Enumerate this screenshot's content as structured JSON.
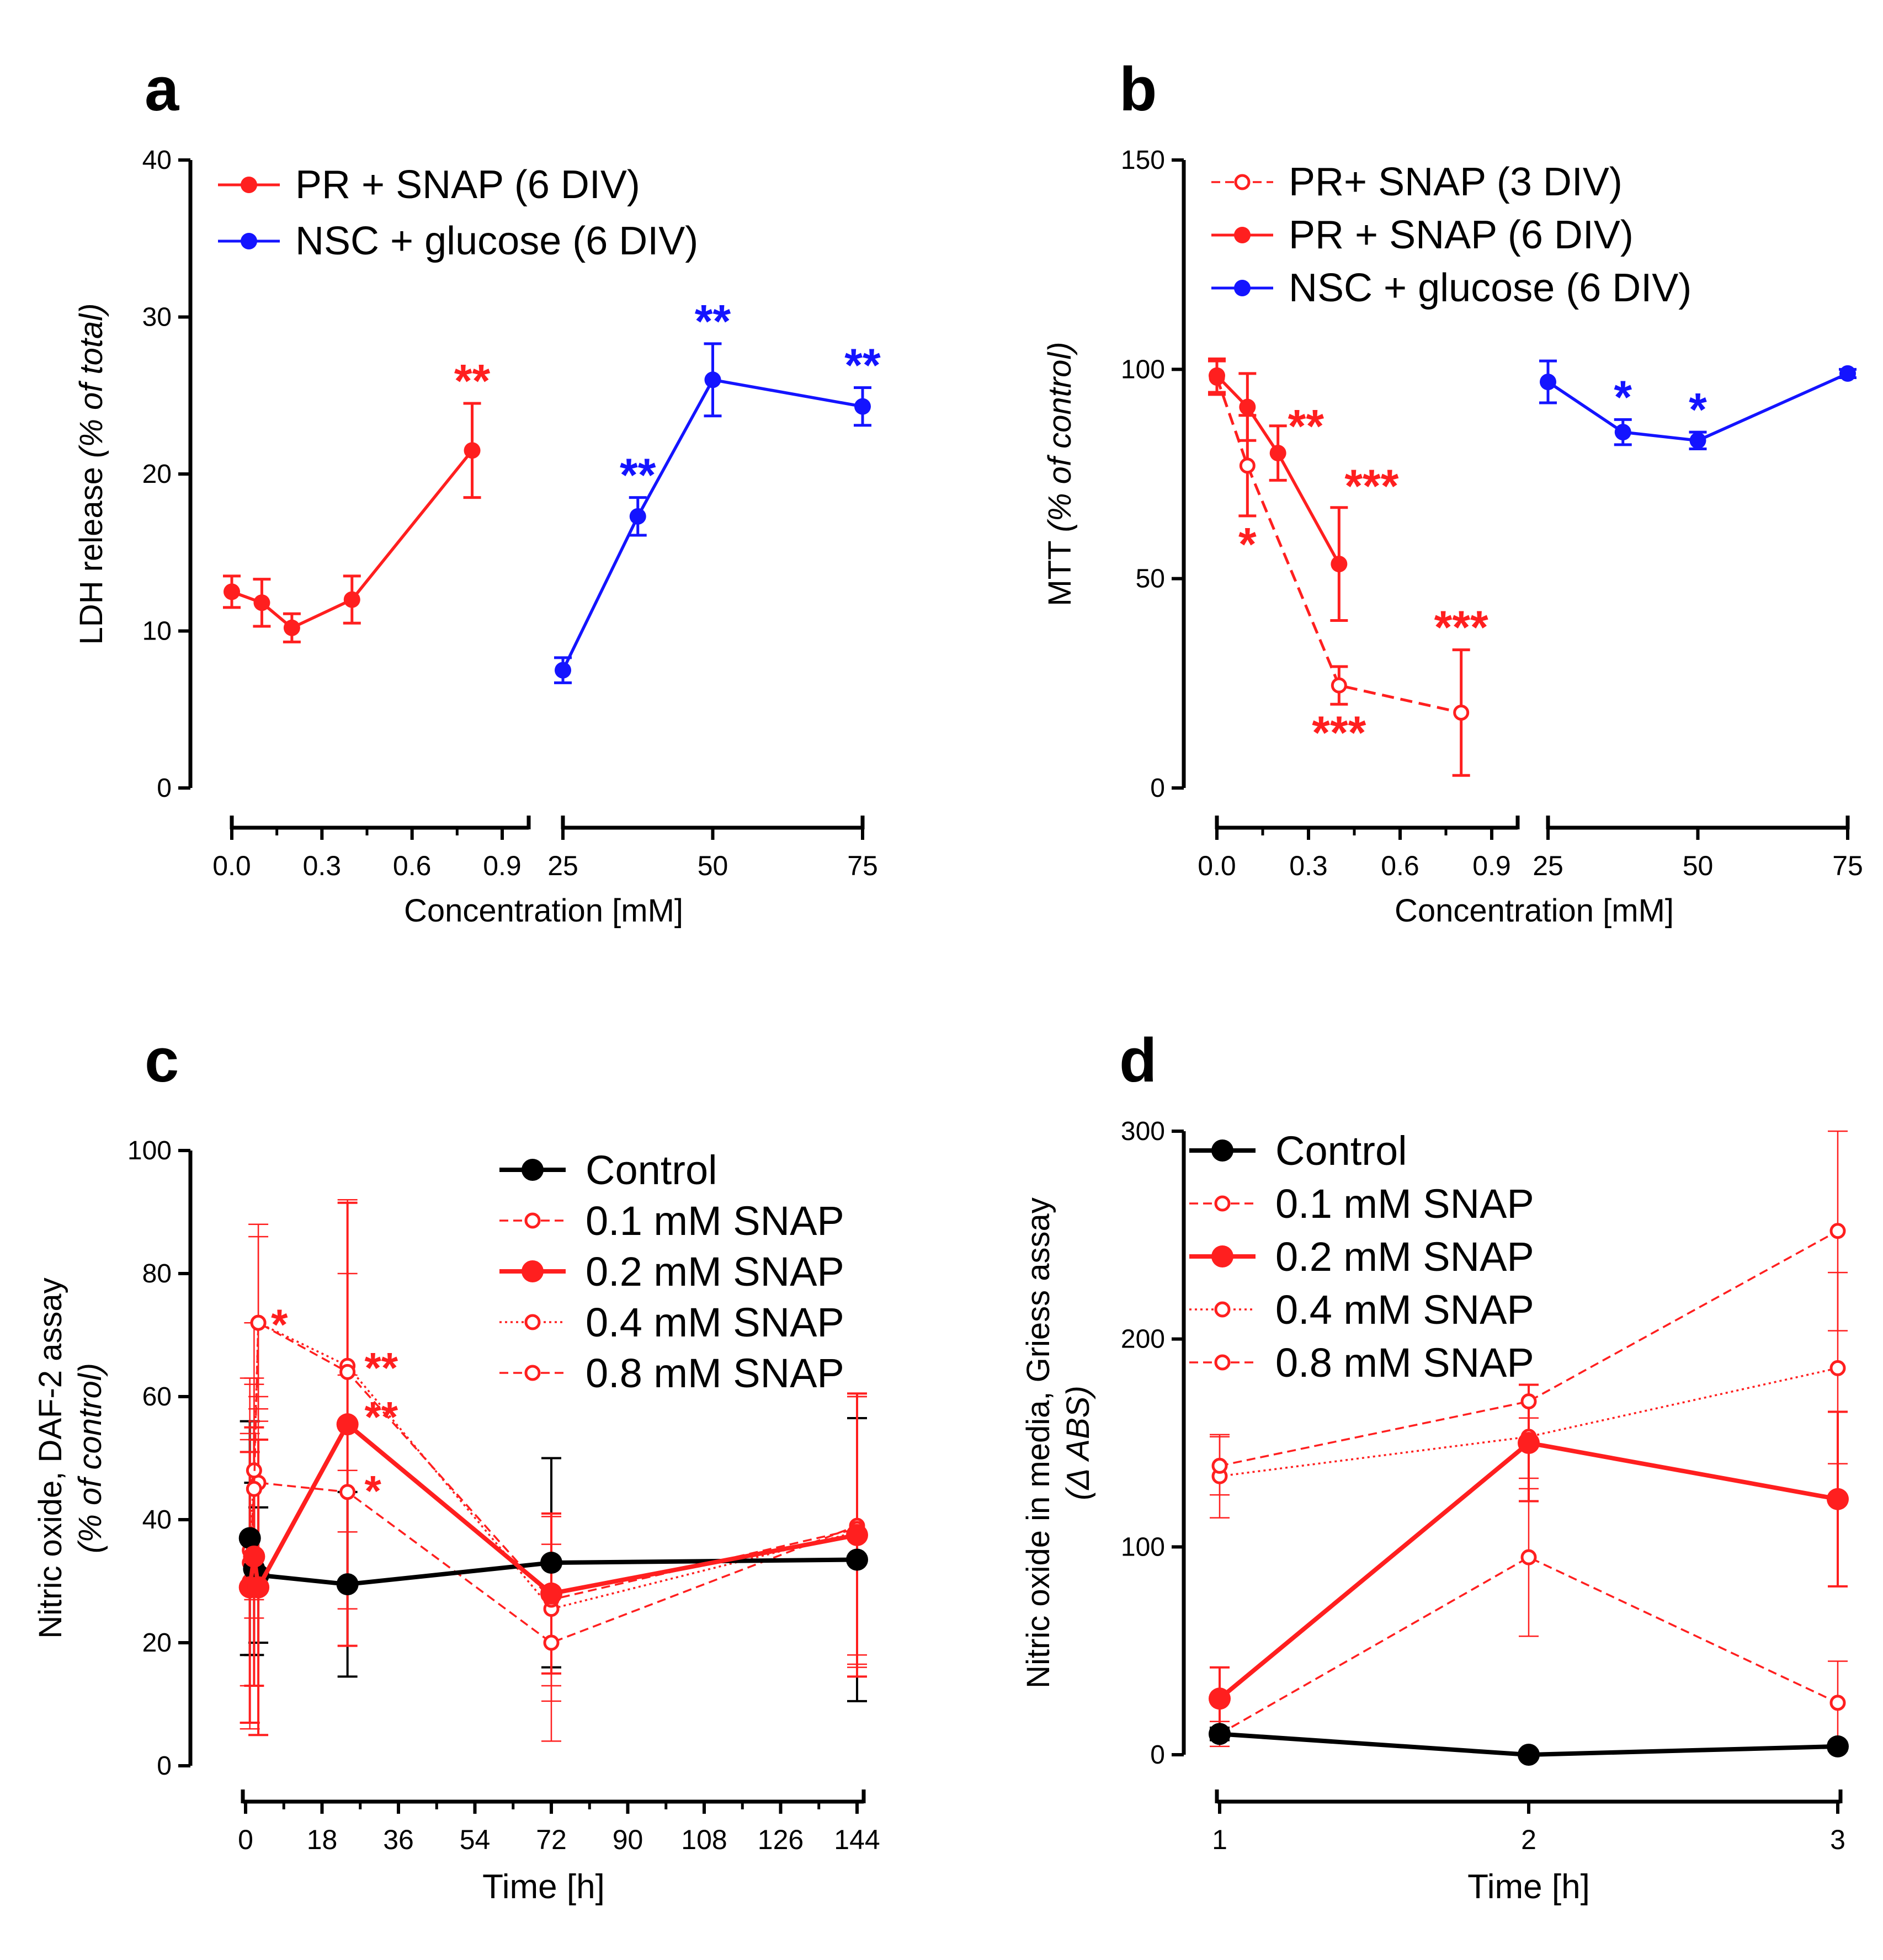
{
  "colors": {
    "red": "#ff1f1f",
    "blue": "#1414ff",
    "black": "#000000"
  },
  "chart_data": [
    {
      "panel": "a",
      "type": "line",
      "ylabel_plain": "LDH release",
      "ylabel_italic": "(% of total)",
      "xlabel": "Concentration [mM]",
      "ylim": [
        0,
        40
      ],
      "yticks": [
        "0",
        "10",
        "20",
        "30",
        "40"
      ],
      "segments": [
        {
          "xlim": [
            0,
            0.9
          ],
          "ticks": [
            "0.0",
            "0.3",
            "0.6",
            "0.9"
          ]
        },
        {
          "xlim": [
            25,
            75
          ],
          "ticks": [
            "25",
            "50",
            "75"
          ]
        }
      ],
      "legend": [
        {
          "label": "PR + SNAP (6 DIV)",
          "color": "red",
          "style": "solid",
          "marker": "filled"
        },
        {
          "label": "NSC + glucose (6 DIV)",
          "color": "blue",
          "style": "solid",
          "marker": "filled"
        }
      ],
      "series": [
        {
          "name": "PR + SNAP (6 DIV)",
          "color": "red",
          "segment": 0,
          "style": "solid",
          "marker": "filled",
          "x": [
            0,
            0.1,
            0.2,
            0.4,
            0.8
          ],
          "y": [
            12.5,
            11.8,
            10.2,
            12.0,
            21.5
          ],
          "err": [
            1.0,
            1.5,
            0.9,
            1.5,
            3.0
          ],
          "stars": [
            "",
            "",
            "",
            "",
            "**"
          ]
        },
        {
          "name": "NSC + glucose (6 DIV)",
          "color": "blue",
          "segment": 1,
          "style": "solid",
          "marker": "filled",
          "x": [
            25,
            37.5,
            50,
            75
          ],
          "y": [
            7.5,
            17.3,
            26.0,
            24.3
          ],
          "err": [
            0.8,
            1.2,
            2.3,
            1.2
          ],
          "stars": [
            "",
            "**",
            "**",
            "**"
          ]
        }
      ]
    },
    {
      "panel": "b",
      "type": "line",
      "ylabel_plain": "MTT",
      "ylabel_italic": "(% of control)",
      "xlabel": "Concentration [mM]",
      "ylim": [
        0,
        150
      ],
      "yticks": [
        "0",
        "50",
        "100",
        "150"
      ],
      "segments": [
        {
          "xlim": [
            0,
            0.9
          ],
          "ticks": [
            "0.0",
            "0.3",
            "0.6",
            "0.9"
          ]
        },
        {
          "xlim": [
            25,
            75
          ],
          "ticks": [
            "25",
            "50",
            "75"
          ]
        }
      ],
      "legend": [
        {
          "label": "PR+ SNAP (3 DIV)",
          "color": "red",
          "style": "dashed",
          "marker": "open"
        },
        {
          "label": "PR + SNAP (6 DIV)",
          "color": "red",
          "style": "solid",
          "marker": "filled"
        },
        {
          "label": "NSC + glucose (6 DIV)",
          "color": "blue",
          "style": "solid",
          "marker": "filled"
        }
      ],
      "series": [
        {
          "name": "PR+ SNAP (3 DIV)",
          "color": "red",
          "segment": 0,
          "style": "dashed",
          "marker": "open",
          "x": [
            0,
            0.1,
            0.4,
            0.8
          ],
          "y": [
            98,
            77,
            24.5,
            18
          ],
          "err": [
            4,
            12,
            4.5,
            15
          ],
          "stars": [
            "",
            "*",
            "***",
            "***"
          ],
          "starpos": [
            "",
            "below",
            "below",
            "above"
          ]
        },
        {
          "name": "PR + SNAP (6 DIV)",
          "color": "red",
          "segment": 0,
          "style": "solid",
          "marker": "filled",
          "x": [
            0,
            0.1,
            0.2,
            0.4
          ],
          "y": [
            98.5,
            91,
            80,
            53.5
          ],
          "err": [
            4,
            8,
            6.5,
            13.5
          ],
          "stars": [
            "",
            "",
            "**",
            "***"
          ],
          "starpos": [
            "",
            "",
            "right",
            "aboveright"
          ]
        },
        {
          "name": "NSC + glucose (6 DIV)",
          "color": "blue",
          "segment": 1,
          "style": "solid",
          "marker": "filled",
          "x": [
            25,
            37.5,
            50,
            75
          ],
          "y": [
            97,
            85,
            83,
            99
          ],
          "err": [
            5,
            3,
            2,
            1
          ],
          "stars": [
            "",
            "*",
            "*",
            ""
          ],
          "starpos": [
            "",
            "above",
            "above",
            ""
          ]
        }
      ]
    },
    {
      "panel": "c",
      "type": "line",
      "ylabel_plain": "Nitric oxide, DAF-2 assay",
      "ylabel_italic": "(% of control)",
      "xlabel": "Time [h]",
      "xlim": [
        0,
        144
      ],
      "xticks": [
        0,
        18,
        36,
        54,
        72,
        90,
        108,
        126,
        144
      ],
      "ylim": [
        0,
        100
      ],
      "yticks": [
        "0",
        "20",
        "40",
        "60",
        "80",
        "100"
      ],
      "legend": [
        {
          "label": "Control",
          "color": "black",
          "style": "solid-thick",
          "marker": "filled-big"
        },
        {
          "label": "0.1 mM SNAP",
          "color": "red",
          "style": "dashed",
          "marker": "open"
        },
        {
          "label": "0.2 mM SNAP",
          "color": "red",
          "style": "solid-thick",
          "marker": "filled-big"
        },
        {
          "label": "0.4 mM SNAP",
          "color": "red",
          "style": "dotted",
          "marker": "open"
        },
        {
          "label": "0.8 mM SNAP",
          "color": "red",
          "style": "dashed",
          "marker": "open"
        }
      ],
      "series": [
        {
          "name": "Control",
          "color": "black",
          "style": "solid-thick",
          "marker": "filled-big",
          "x": [
            1,
            2,
            3,
            24,
            72,
            144
          ],
          "y": [
            37,
            32,
            31,
            29.5,
            33,
            33.5
          ],
          "err": [
            19,
            14,
            11,
            15,
            17,
            23
          ]
        },
        {
          "name": "0.1 mM SNAP",
          "color": "red",
          "style": "dashed",
          "marker": "open",
          "x": [
            1,
            2,
            3,
            24,
            72,
            144
          ],
          "y": [
            33,
            45,
            46,
            44.5,
            20,
            39
          ],
          "err": [
            20,
            17,
            14,
            19,
            16,
            21
          ]
        },
        {
          "name": "0.2 mM SNAP",
          "color": "red",
          "style": "solid-thick",
          "marker": "filled-big",
          "x": [
            1,
            2,
            3,
            24,
            72,
            144
          ],
          "y": [
            29,
            34,
            29,
            55.5,
            28,
            37.5
          ],
          "err": [
            22,
            21,
            24,
            36,
            13,
            23
          ]
        },
        {
          "name": "0.4 mM SNAP",
          "color": "red",
          "style": "dotted",
          "marker": "open",
          "x": [
            1,
            2,
            3,
            24,
            72,
            144
          ],
          "y": [
            35,
            48,
            72,
            65,
            25.5,
            38
          ],
          "err": [
            28,
            24,
            16,
            27,
            15,
            22
          ]
        },
        {
          "name": "0.8 mM SNAP",
          "color": "red",
          "style": "dashed",
          "marker": "open",
          "x": [
            1,
            2,
            3,
            24,
            72,
            144
          ],
          "y": [
            30,
            45,
            72,
            64,
            27,
            38.5
          ],
          "err": [
            24,
            18,
            14,
            16,
            14,
            22
          ]
        }
      ],
      "annotations": [
        {
          "text": "*",
          "x": 6,
          "y": 72
        },
        {
          "text": "**",
          "x": 28,
          "y": 65
        },
        {
          "text": "**",
          "x": 28,
          "y": 57
        },
        {
          "text": "*",
          "x": 28,
          "y": 45
        }
      ]
    },
    {
      "panel": "d",
      "type": "line",
      "ylabel_plain": "Nitric oxide in media, Griess assay",
      "ylabel_italic": "(Δ ABS)",
      "xlabel": "Time [h]",
      "xlim": [
        1,
        3
      ],
      "xticks": [
        1,
        2,
        3
      ],
      "ylim": [
        0,
        300
      ],
      "yticks": [
        "0",
        "100",
        "200",
        "300"
      ],
      "legend": [
        {
          "label": "Control",
          "color": "black",
          "style": "solid-thick",
          "marker": "filled-big"
        },
        {
          "label": "0.1 mM SNAP",
          "color": "red",
          "style": "dashed",
          "marker": "open"
        },
        {
          "label": "0.2 mM SNAP",
          "color": "red",
          "style": "solid-thick",
          "marker": "filled-big"
        },
        {
          "label": "0.4 mM SNAP",
          "color": "red",
          "style": "dotted",
          "marker": "open"
        },
        {
          "label": "0.8 mM SNAP",
          "color": "red",
          "style": "dashed",
          "marker": "open"
        }
      ],
      "series": [
        {
          "name": "Control",
          "color": "black",
          "style": "solid-thick",
          "marker": "filled-big",
          "x": [
            1,
            2,
            3
          ],
          "y": [
            10,
            0,
            4
          ],
          "err": [
            3,
            2,
            2
          ]
        },
        {
          "name": "0.1 mM SNAP",
          "color": "red",
          "style": "dashed",
          "marker": "open",
          "x": [
            1,
            2,
            3
          ],
          "y": [
            10,
            95,
            25
          ],
          "err": [
            6,
            38,
            20
          ]
        },
        {
          "name": "0.2 mM SNAP",
          "color": "red",
          "style": "solid-thick",
          "marker": "filled-big",
          "x": [
            1,
            2,
            3
          ],
          "y": [
            27,
            150,
            123
          ],
          "err": [
            15,
            28,
            42
          ]
        },
        {
          "name": "0.4 mM SNAP",
          "color": "red",
          "style": "dotted",
          "marker": "open",
          "x": [
            1,
            2,
            3
          ],
          "y": [
            134,
            153,
            186
          ],
          "err": [
            20,
            25,
            46
          ]
        },
        {
          "name": "0.8 mM SNAP",
          "color": "red",
          "style": "dashed",
          "marker": "open",
          "x": [
            1,
            2,
            3
          ],
          "y": [
            139,
            170,
            252
          ],
          "err": [
            14,
            8,
            48
          ]
        }
      ]
    }
  ]
}
